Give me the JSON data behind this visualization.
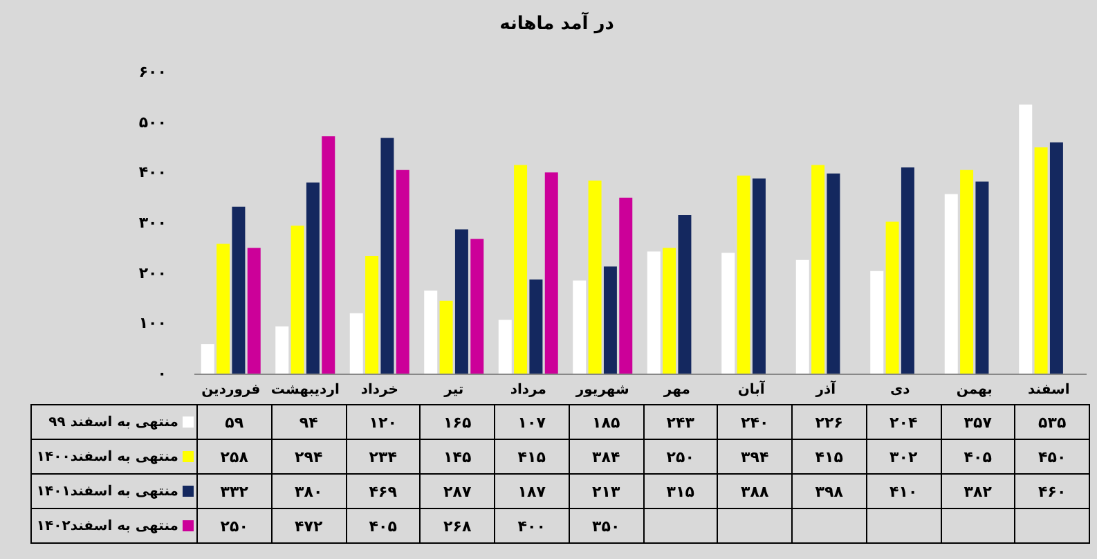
{
  "chart_data": {
    "type": "bar",
    "title": "در آمد ماهانه",
    "categories": [
      "فروردین",
      "اردیبهشت",
      "خرداد",
      "تیر",
      "مرداد",
      "شهریور",
      "مهر",
      "آبان",
      "آذر",
      "دی",
      "بهمن",
      "اسفند"
    ],
    "series": [
      {
        "name": "منتهی به اسفند ۹۹",
        "color": "#ffffff",
        "values": [
          59,
          94,
          120,
          165,
          107,
          185,
          243,
          240,
          226,
          204,
          357,
          535
        ],
        "value_labels": [
          "۵۹",
          "۹۴",
          "۱۲۰",
          "۱۶۵",
          "۱۰۷",
          "۱۸۵",
          "۲۴۳",
          "۲۴۰",
          "۲۲۶",
          "۲۰۴",
          "۳۵۷",
          "۵۳۵"
        ]
      },
      {
        "name": "منتهی به اسفند۱۴۰۰",
        "color": "#ffff00",
        "values": [
          258,
          294,
          234,
          145,
          415,
          384,
          250,
          394,
          415,
          302,
          405,
          450
        ],
        "value_labels": [
          "۲۵۸",
          "۲۹۴",
          "۲۳۴",
          "۱۴۵",
          "۴۱۵",
          "۳۸۴",
          "۲۵۰",
          "۳۹۴",
          "۴۱۵",
          "۳۰۲",
          "۴۰۵",
          "۴۵۰"
        ]
      },
      {
        "name": "منتهی به اسفند۱۴۰۱",
        "color": "#14285f",
        "values": [
          332,
          380,
          469,
          287,
          187,
          213,
          315,
          388,
          398,
          410,
          382,
          460
        ],
        "value_labels": [
          "۳۳۲",
          "۳۸۰",
          "۴۶۹",
          "۲۸۷",
          "۱۸۷",
          "۲۱۳",
          "۳۱۵",
          "۳۸۸",
          "۳۹۸",
          "۴۱۰",
          "۳۸۲",
          "۴۶۰"
        ]
      },
      {
        "name": "منتهی به اسفند۱۴۰۲",
        "color": "#cc0099",
        "values": [
          250,
          472,
          405,
          268,
          400,
          350,
          null,
          null,
          null,
          null,
          null,
          null
        ],
        "value_labels": [
          "۲۵۰",
          "۴۷۲",
          "۴۰۵",
          "۲۶۸",
          "۴۰۰",
          "۳۵۰",
          null,
          null,
          null,
          null,
          null,
          null
        ]
      }
    ],
    "ylim": [
      0,
      600
    ],
    "yticks": [
      {
        "value": 0,
        "label": "۰"
      },
      {
        "value": 100,
        "label": "۱۰۰"
      },
      {
        "value": 200,
        "label": "۲۰۰"
      },
      {
        "value": 300,
        "label": "۳۰۰"
      },
      {
        "value": 400,
        "label": "۴۰۰"
      },
      {
        "value": 500,
        "label": "۵۰۰"
      },
      {
        "value": 600,
        "label": "۶۰۰"
      }
    ],
    "legend": "bottom left"
  }
}
